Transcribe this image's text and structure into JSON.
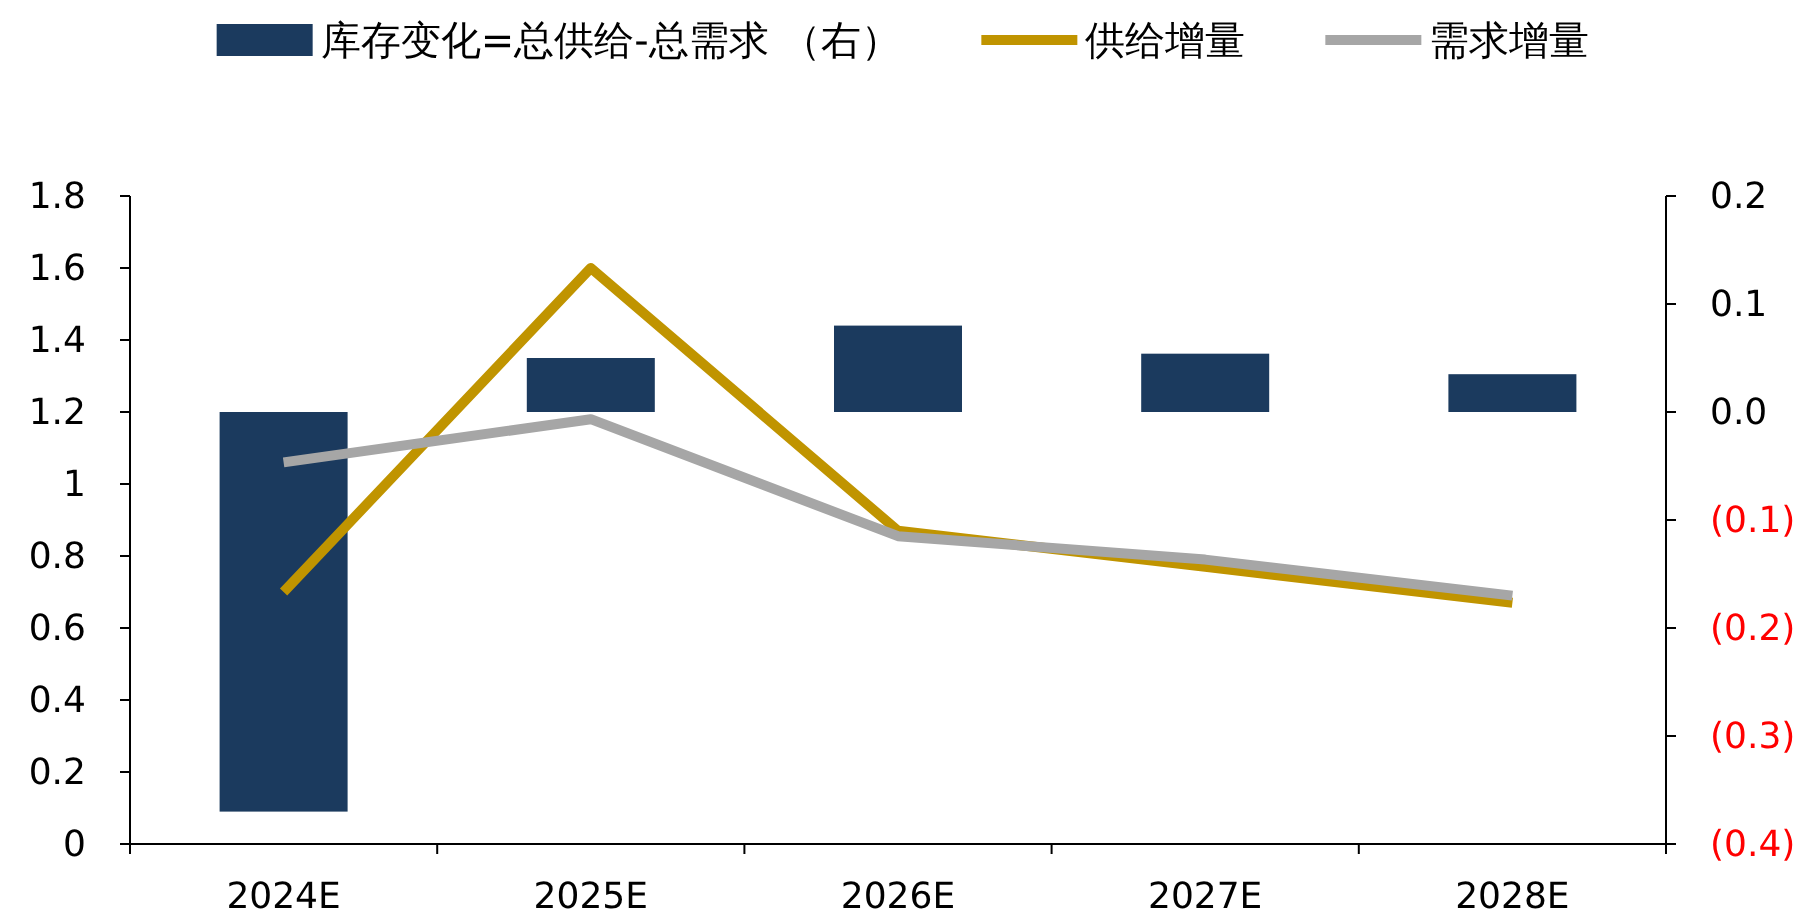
{
  "chart_data": {
    "type": "bar",
    "categories": [
      "2024E",
      "2025E",
      "2026E",
      "2027E",
      "2028E"
    ],
    "series": [
      {
        "name": "库存变化=总供给-总需求 （右）",
        "axis": "y2",
        "color": "#1b3a5e",
        "values": [
          -0.37,
          0.05,
          0.08,
          0.054,
          0.035
        ]
      },
      {
        "name": "供给增量",
        "type": "line",
        "color": "#c09400",
        "values": [
          0.7,
          1.6,
          0.87,
          0.77,
          0.67
        ]
      },
      {
        "name": "需求增量",
        "type": "line",
        "color": "#a6a6a6",
        "values": [
          1.06,
          1.18,
          0.855,
          0.79,
          0.69
        ]
      }
    ],
    "ylim": [
      0,
      1.8
    ],
    "yticks": [
      0,
      0.2,
      0.4,
      0.6,
      0.8,
      1,
      1.2,
      1.4,
      1.6,
      1.8
    ],
    "y2lim": [
      -0.4,
      0.2
    ],
    "y2ticks": [
      {
        "value": -0.4,
        "label": "(0.4)"
      },
      {
        "value": -0.3,
        "label": "(0.3)"
      },
      {
        "value": -0.2,
        "label": "(0.2)"
      },
      {
        "value": -0.1,
        "label": "(0.1)"
      },
      {
        "value": 0,
        "label": "0.0"
      },
      {
        "value": 0.1,
        "label": "0.1"
      },
      {
        "value": 0.2,
        "label": "0.2"
      }
    ],
    "legend": "top",
    "grid": false,
    "marker": "none"
  }
}
